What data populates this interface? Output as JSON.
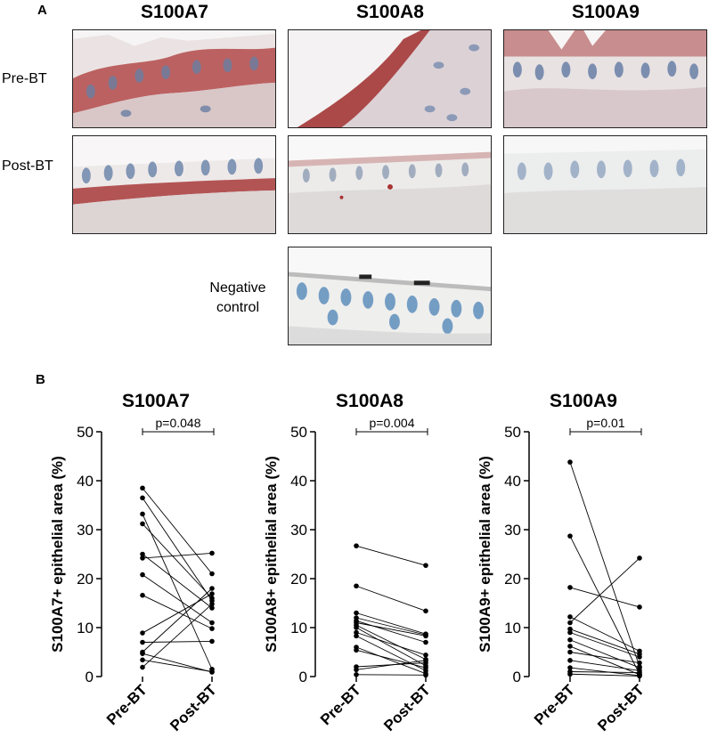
{
  "panelA": {
    "letter": "A",
    "columns": [
      "S100A7",
      "S100A8",
      "S100A9"
    ],
    "rows": [
      "Pre-BT",
      "Post-BT"
    ],
    "negative_label_line1": "Negative",
    "negative_label_line2": "control"
  },
  "panelB": {
    "letter": "B"
  },
  "colors": {
    "stain_red": "#a83a3a",
    "nuclei_blue": "#6a83a8",
    "tissue_bg": "#e9e4e4"
  },
  "chart_data": [
    {
      "type": "scatter",
      "title": "S100A7",
      "ylabel": "S100A7+ epithelial area (%)",
      "categories": [
        "Pre-BT",
        "Post-BT"
      ],
      "ylim": [
        0,
        50
      ],
      "yticks": [
        0,
        10,
        20,
        30,
        40,
        50
      ],
      "pvalue": "p=0.048",
      "pairs": [
        [
          38.5,
          21.0
        ],
        [
          36.5,
          15.5
        ],
        [
          33.2,
          1.5
        ],
        [
          31.2,
          16.0
        ],
        [
          25.0,
          14.0
        ],
        [
          24.2,
          25.2
        ],
        [
          20.8,
          11.0
        ],
        [
          16.6,
          9.8
        ],
        [
          8.9,
          16.9
        ],
        [
          7.0,
          7.2
        ],
        [
          5.0,
          18.0
        ],
        [
          4.7,
          0.9
        ],
        [
          3.4,
          1.0
        ],
        [
          1.9,
          14.8
        ]
      ]
    },
    {
      "type": "scatter",
      "title": "S100A8",
      "ylabel": "S100A8+ epithelial area (%)",
      "categories": [
        "Pre-BT",
        "Post-BT"
      ],
      "ylim": [
        0,
        50
      ],
      "yticks": [
        0,
        10,
        20,
        30,
        40,
        50
      ],
      "pvalue": "p=0.004",
      "pairs": [
        [
          26.7,
          22.7
        ],
        [
          18.5,
          13.4
        ],
        [
          13.0,
          8.7
        ],
        [
          12.0,
          8.5
        ],
        [
          11.4,
          7.0
        ],
        [
          11.0,
          8.3
        ],
        [
          10.5,
          3.5
        ],
        [
          10.0,
          2.2
        ],
        [
          9.0,
          4.4
        ],
        [
          8.3,
          1.2
        ],
        [
          6.0,
          0.6
        ],
        [
          5.4,
          1.8
        ],
        [
          2.0,
          2.8
        ],
        [
          1.4,
          3.3
        ],
        [
          0.4,
          0.3
        ]
      ]
    },
    {
      "type": "scatter",
      "title": "S100A9",
      "ylabel": "S100A9+ epithelial area (%)",
      "categories": [
        "Pre-BT",
        "Post-BT"
      ],
      "ylim": [
        0,
        50
      ],
      "yticks": [
        0,
        10,
        20,
        30,
        40,
        50
      ],
      "pvalue": "p=0.01",
      "pairs": [
        [
          43.8,
          2.0
        ],
        [
          28.7,
          0.5
        ],
        [
          18.2,
          14.2
        ],
        [
          12.2,
          5.2
        ],
        [
          11.0,
          24.2
        ],
        [
          9.7,
          4.6
        ],
        [
          9.0,
          4.0
        ],
        [
          7.5,
          1.8
        ],
        [
          6.2,
          0.4
        ],
        [
          5.0,
          2.8
        ],
        [
          3.3,
          1.2
        ],
        [
          1.8,
          0.2
        ],
        [
          1.0,
          0.8
        ],
        [
          0.5,
          0.1
        ]
      ]
    }
  ]
}
